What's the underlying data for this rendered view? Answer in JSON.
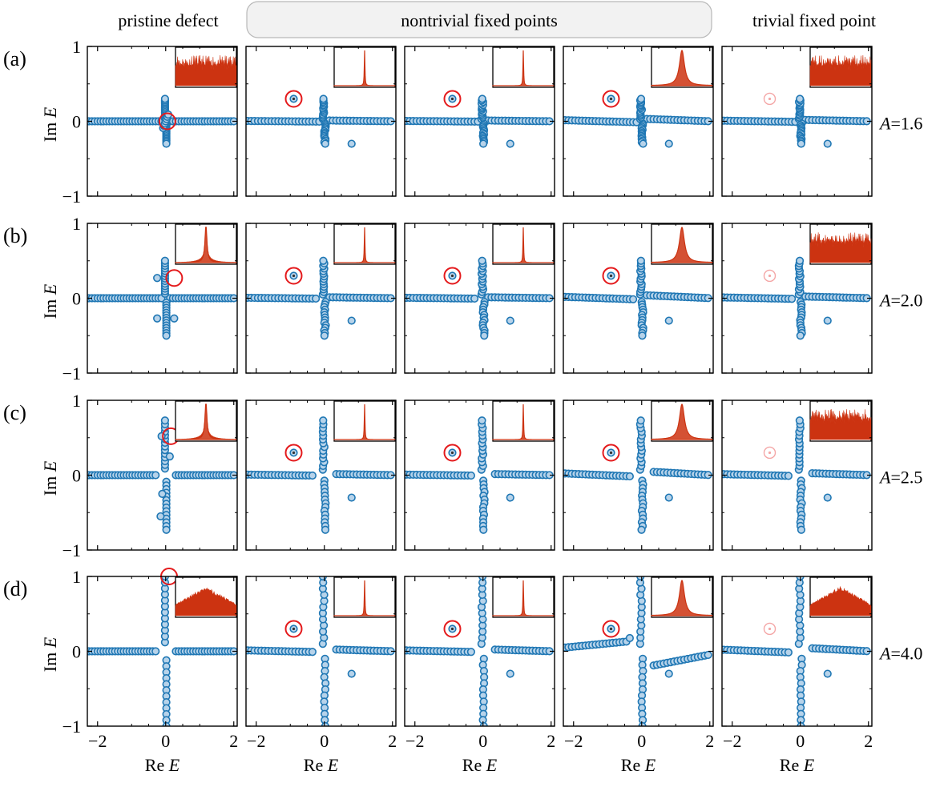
{
  "headers": {
    "left": "pristine defect",
    "middle": "nontrivial fixed points",
    "right": "trivial fixed point"
  },
  "colors": {
    "marker_face": "#b7d3ea",
    "marker_edge": "#1f77b4",
    "highlight": "#e41a1c",
    "highlight_faded": "#f4a6a6",
    "inset_line": "#cc3311"
  },
  "chart_data": {
    "type": "scatter",
    "layout": "4x5 grid of panels",
    "xlabel": "Re E",
    "ylabel": "Im E",
    "xlim": [
      -2.3,
      2.1
    ],
    "ylim": [
      -1,
      1
    ],
    "xticks": [
      -2,
      0,
      2
    ],
    "yticks": [
      -1,
      0,
      1
    ],
    "xticklabels": [
      "−2",
      "0",
      "2"
    ],
    "yticklabels": [
      "−1",
      "0",
      "1"
    ],
    "columns": [
      "pristine defect",
      "nontrivial fixed points",
      "nontrivial fixed points",
      "nontrivial fixed points",
      "trivial fixed point"
    ],
    "rows": [
      {
        "label": "(a)",
        "param": "A=1.6",
        "A": 1.6,
        "vlen": 0.3,
        "highlight_pristine": [
          0.05,
          0.0
        ],
        "insets": [
          "noisy",
          "sharp",
          "sharp",
          "lorentz",
          "noisy"
        ]
      },
      {
        "label": "(b)",
        "param": "A=2.0",
        "A": 2.0,
        "vlen": 0.5,
        "highlight_pristine": [
          0.25,
          0.27
        ],
        "insets": [
          "peak",
          "sharp",
          "sharp",
          "lorentz",
          "noisy"
        ]
      },
      {
        "label": "(c)",
        "param": "A=2.5",
        "A": 2.5,
        "vlen": 0.73,
        "highlight_pristine": [
          0.15,
          0.52
        ],
        "insets": [
          "peak",
          "sharp",
          "sharp",
          "lorentz",
          "noisy"
        ]
      },
      {
        "label": "(d)",
        "param": "A=4.0",
        "A": 4.0,
        "vlen": 1.0,
        "highlight_pristine": [
          0.1,
          1.0
        ],
        "insets": [
          "cusp",
          "sharp",
          "sharp",
          "lorentz",
          "cusp"
        ]
      }
    ],
    "fixed_point": [
      -0.9,
      0.3
    ],
    "isolated_point": [
      0.8,
      -0.3
    ]
  }
}
